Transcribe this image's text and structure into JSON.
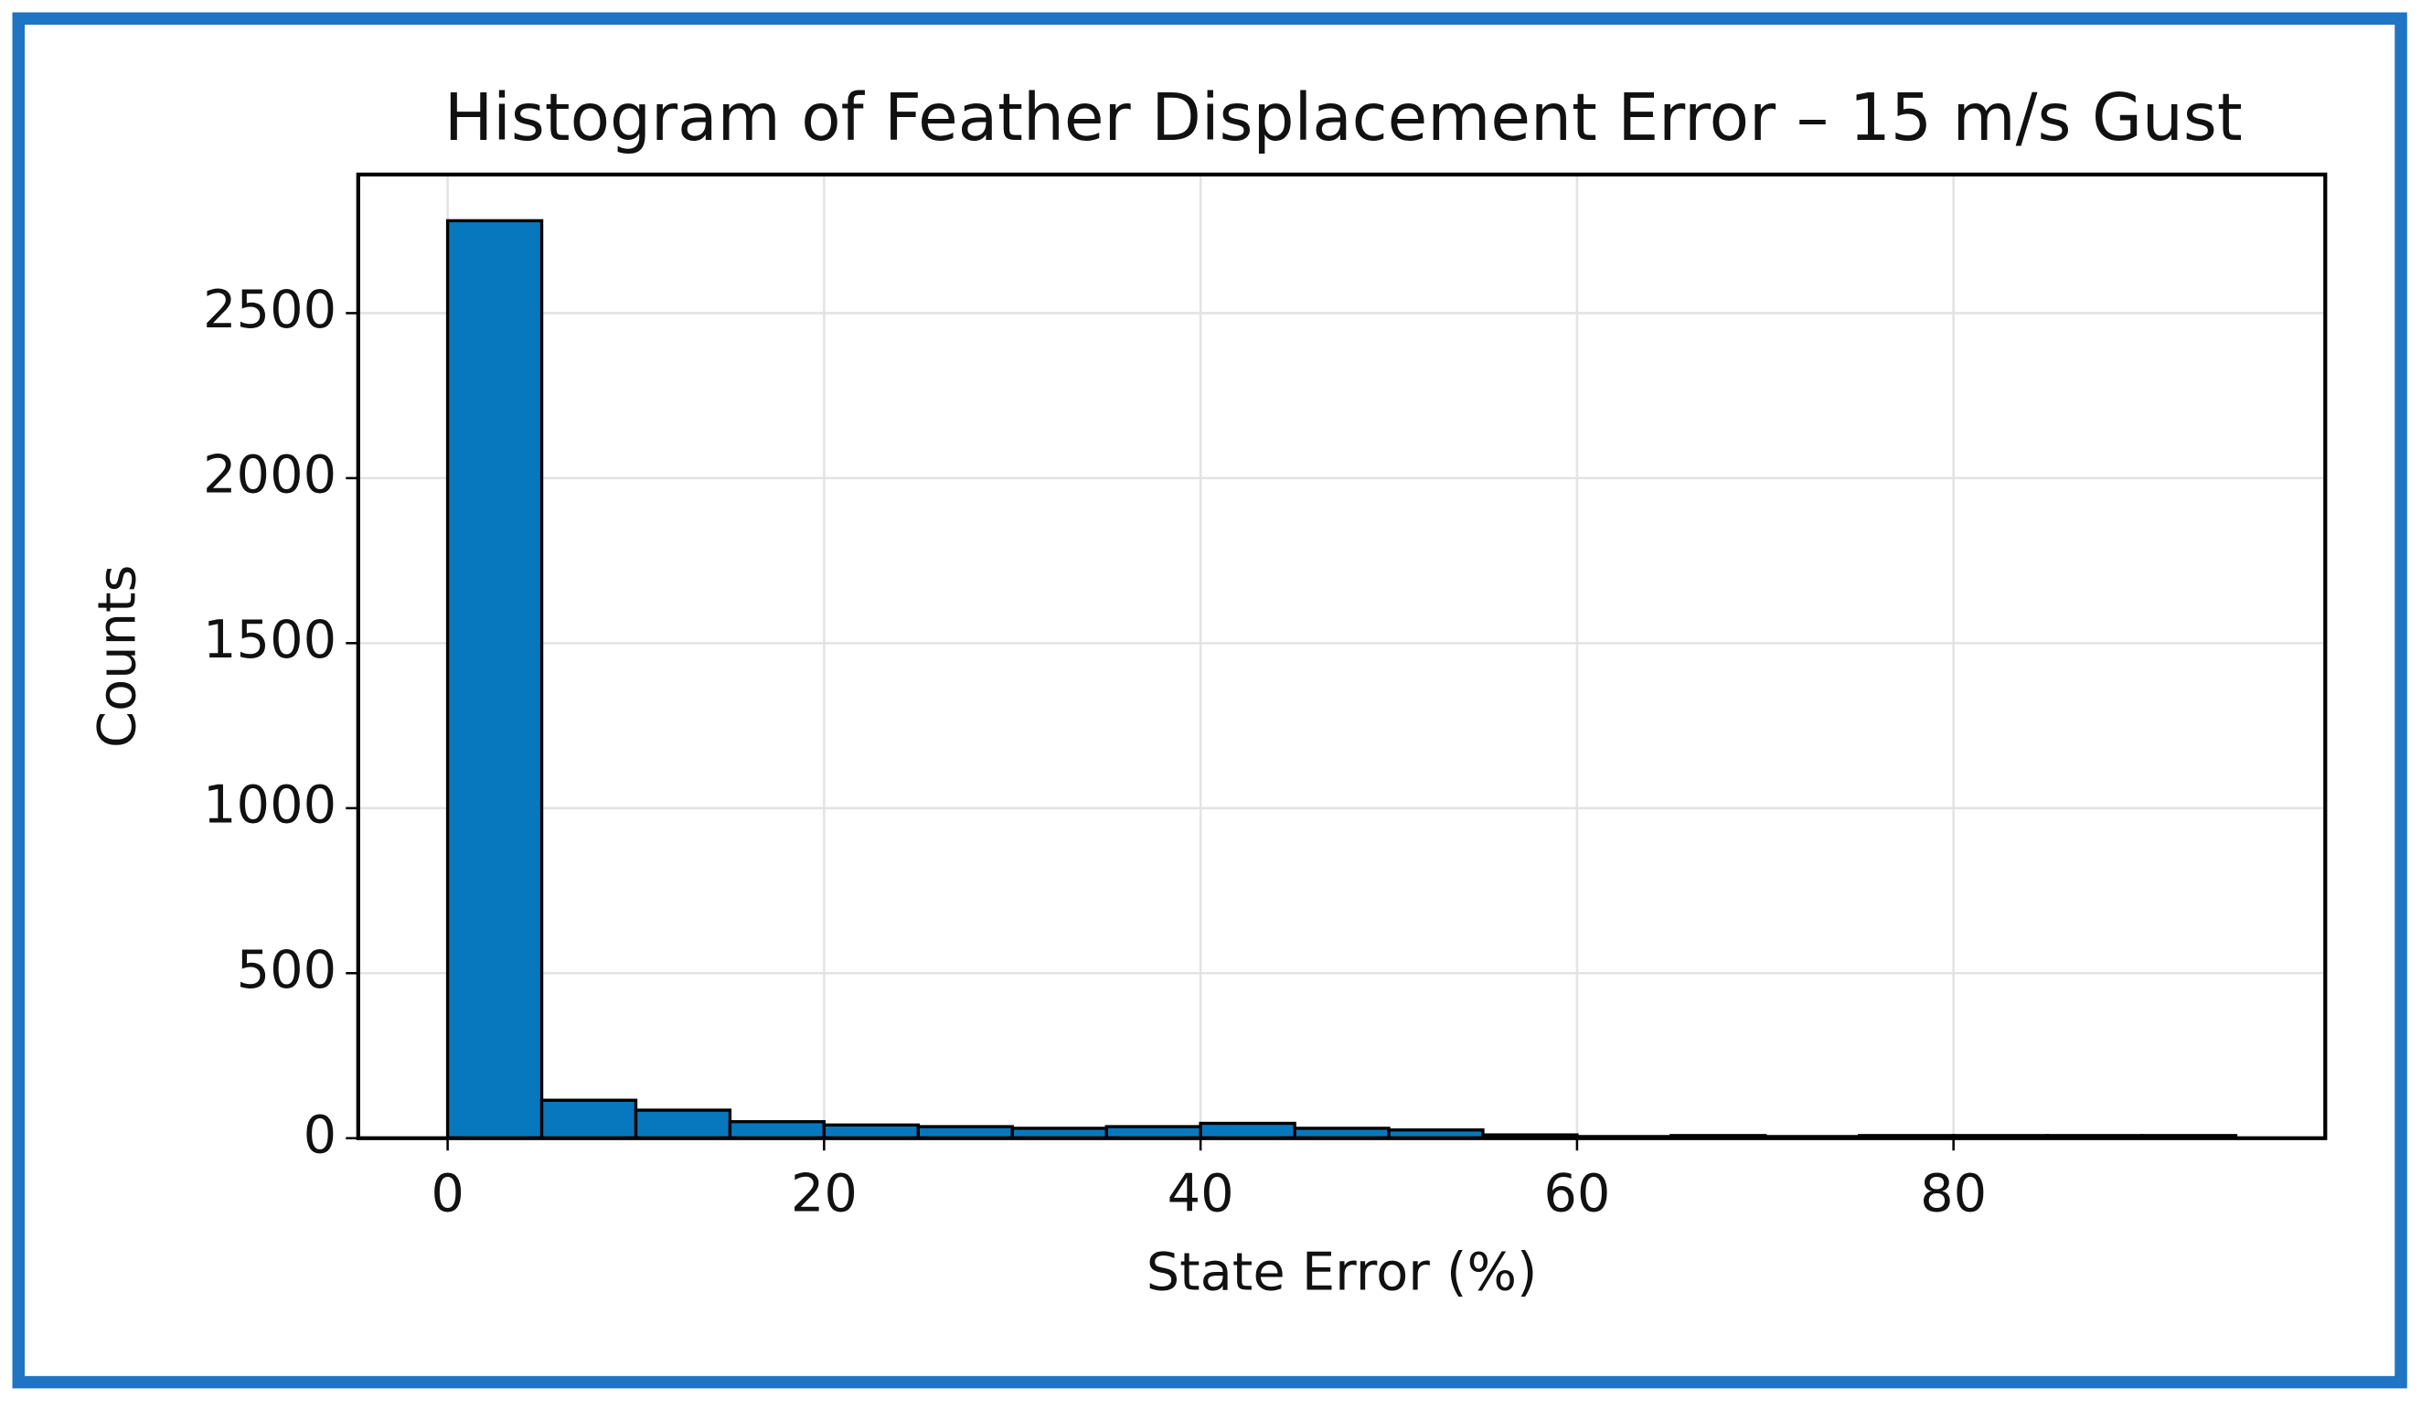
{
  "chart_data": {
    "type": "histogram",
    "title": "Histogram of Feather Displacement Error – 15 m/s Gust",
    "x_label": "State Error (%)",
    "y_label": "Counts",
    "bins": [
      0,
      5,
      10,
      15,
      20,
      25,
      30,
      35,
      40,
      45,
      50,
      55,
      60,
      65,
      70,
      75,
      80,
      85,
      90,
      95
    ],
    "values": [
      2780,
      115,
      85,
      50,
      40,
      35,
      30,
      35,
      45,
      30,
      25,
      10,
      5,
      8,
      5,
      8,
      8,
      8,
      8
    ],
    "color": "#0878be",
    "xlim": [
      -4.75,
      99.75
    ],
    "ylim": [
      0,
      2920
    ],
    "xticks": [
      0,
      20,
      40,
      60,
      80
    ],
    "yticks": [
      0,
      500,
      1000,
      1500,
      2000,
      2500
    ],
    "grid": true
  }
}
